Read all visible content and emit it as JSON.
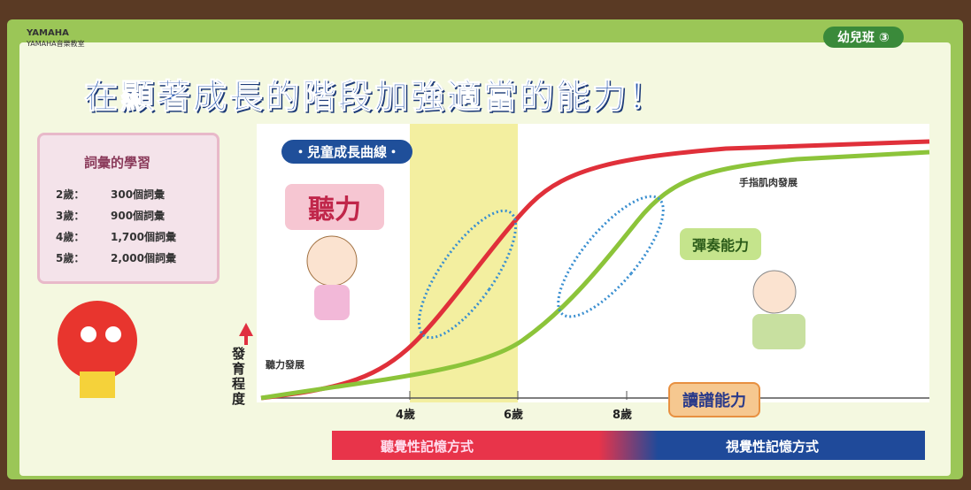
{
  "header": {
    "brand": "YAMAHA",
    "school": "YAMAHA音樂教室",
    "badge": "幼兒班 ③",
    "title": "在顯著成長的階段加強適當的能力！"
  },
  "vocabulary": {
    "title": "詞彙的學習",
    "rows": [
      [
        "2歲：",
        "300個詞彙"
      ],
      [
        "3歲：",
        "900個詞彙"
      ],
      [
        "4歲：",
        "1,700個詞彙"
      ],
      [
        "5歲：",
        "2,000個詞彙"
      ]
    ]
  },
  "curve_panel": {
    "label": "・兒童成長曲線・",
    "y_axis_label": "發育程度",
    "x_ticks": [
      "4歲",
      "6歲",
      "8歲"
    ],
    "callouts": {
      "hearing": "聽力",
      "playing": "彈奏能力",
      "reading": "讀譜能力"
    },
    "notes": {
      "finger": "手指肌肉發展",
      "hearing_dev": "聽力發展"
    }
  },
  "footer": {
    "auditory": "聽覺性記憶方式",
    "visual": "視覺性記憶方式"
  }
}
